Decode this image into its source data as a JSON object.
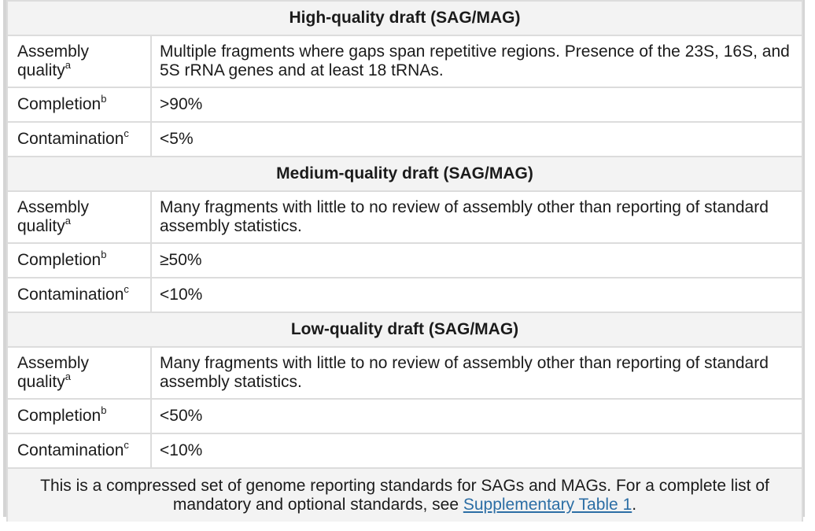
{
  "sections": [
    {
      "title": "High-quality draft (SAG/MAG)",
      "rows": [
        {
          "label": "Assembly quality",
          "sup": "a",
          "value": "Multiple fragments where gaps span repetitive regions. Presence of the 23S, 16S, and 5S rRNA genes and at least 18 tRNAs."
        },
        {
          "label": "Completion",
          "sup": "b",
          "value": ">90%"
        },
        {
          "label": "Contamination",
          "sup": "c",
          "value": "<5%"
        }
      ]
    },
    {
      "title": "Medium-quality draft (SAG/MAG)",
      "rows": [
        {
          "label": "Assembly quality",
          "sup": "a",
          "value": "Many fragments with little to no review of assembly other than reporting of standard assembly statistics."
        },
        {
          "label": "Completion",
          "sup": "b",
          "value": "≥50%"
        },
        {
          "label": "Contamination",
          "sup": "c",
          "value": "<10%"
        }
      ]
    },
    {
      "title": "Low-quality draft (SAG/MAG)",
      "rows": [
        {
          "label": "Assembly quality",
          "sup": "a",
          "value": "Many fragments with little to no review of assembly other than reporting of standard assembly statistics."
        },
        {
          "label": "Completion",
          "sup": "b",
          "value": "<50%"
        },
        {
          "label": "Contamination",
          "sup": "c",
          "value": "<10%"
        }
      ]
    }
  ],
  "footer": {
    "text_before": "This is a compressed set of genome reporting standards for SAGs and MAGs. For a complete list of mandatory and optional standards, see ",
    "link_text": "Supplementary Table 1",
    "text_after": "."
  },
  "colors": {
    "link": "#2c6ea5",
    "border": "#dcdcdc",
    "section_bg": "#f3f3f3"
  }
}
